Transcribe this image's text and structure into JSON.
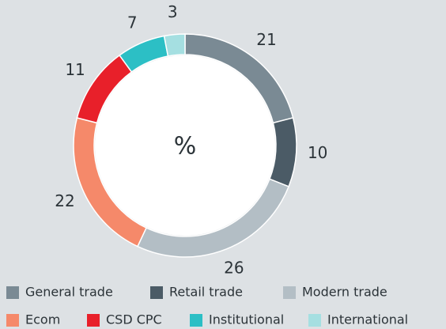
{
  "chart_data": {
    "type": "donut",
    "center_label": "%",
    "categories": [
      "General trade",
      "Retail trade",
      "Modern trade",
      "Ecom",
      "CSD CPC",
      "Institutional",
      "International"
    ],
    "values": [
      21,
      10,
      26,
      22,
      11,
      7,
      3
    ],
    "colors": [
      "#7a8a94",
      "#4b5b66",
      "#b3bec5",
      "#f5896a",
      "#e8202a",
      "#2cbfc5",
      "#a5dfe1"
    ]
  }
}
